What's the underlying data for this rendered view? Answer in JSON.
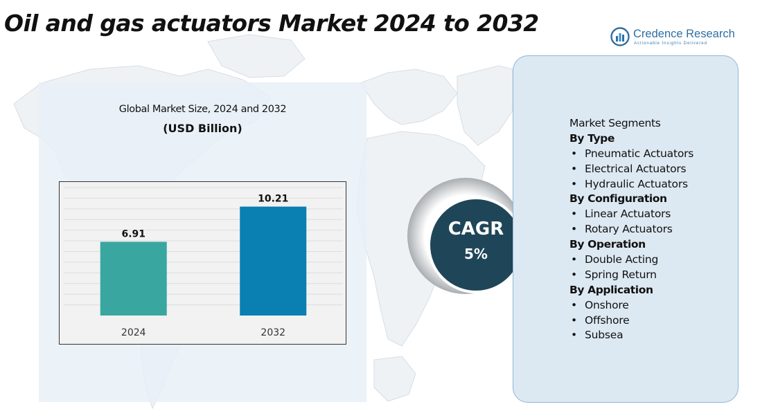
{
  "title": "Oil and gas actuators Market 2024 to 2032",
  "brand": {
    "name": "Credence Research",
    "tagline": "Actionable Insights Delivered",
    "icon": "credence-logo-icon"
  },
  "chart_panel": {
    "heading": "Global Market Size, 2024 and 2032",
    "unit_label": "(USD Billion)"
  },
  "chart_data": {
    "type": "bar",
    "title": "Global Market Size, 2024 and 2032",
    "ylabel": "(USD Billion)",
    "xlabel": "",
    "categories": [
      "2024",
      "2032"
    ],
    "values": [
      6.91,
      10.21
    ],
    "value_labels": [
      "6.91",
      "10.21"
    ],
    "colors": [
      "#3aa6a0",
      "#0a7fb2"
    ],
    "ylim": [
      0,
      12
    ],
    "grid": true,
    "legend": "none"
  },
  "cagr": {
    "label": "CAGR",
    "value": "5%"
  },
  "segments": {
    "title": "Market Segments",
    "groups": [
      {
        "title": "By Type",
        "items": [
          "Pneumatic Actuators",
          "Electrical Actuators",
          "Hydraulic Actuators"
        ]
      },
      {
        "title": "By Configuration",
        "items": [
          "Linear Actuators",
          "Rotary Actuators"
        ]
      },
      {
        "title": "By Operation",
        "items": [
          "Double Acting",
          "Spring Return"
        ]
      },
      {
        "title": "By Application",
        "items": [
          "Onshore",
          "Offshore",
          "Subsea"
        ]
      }
    ]
  },
  "colors": {
    "title_text": "#111111",
    "brand_blue": "#2f6fa0",
    "panel_bg": "#e7f0f7",
    "segment_panel_bg": "#dde9f2",
    "segment_panel_border": "#8eb4d6",
    "cagr_circle": "#1f4658",
    "map_fill": "#eef2f5",
    "map_stroke": "#d5dde4"
  }
}
